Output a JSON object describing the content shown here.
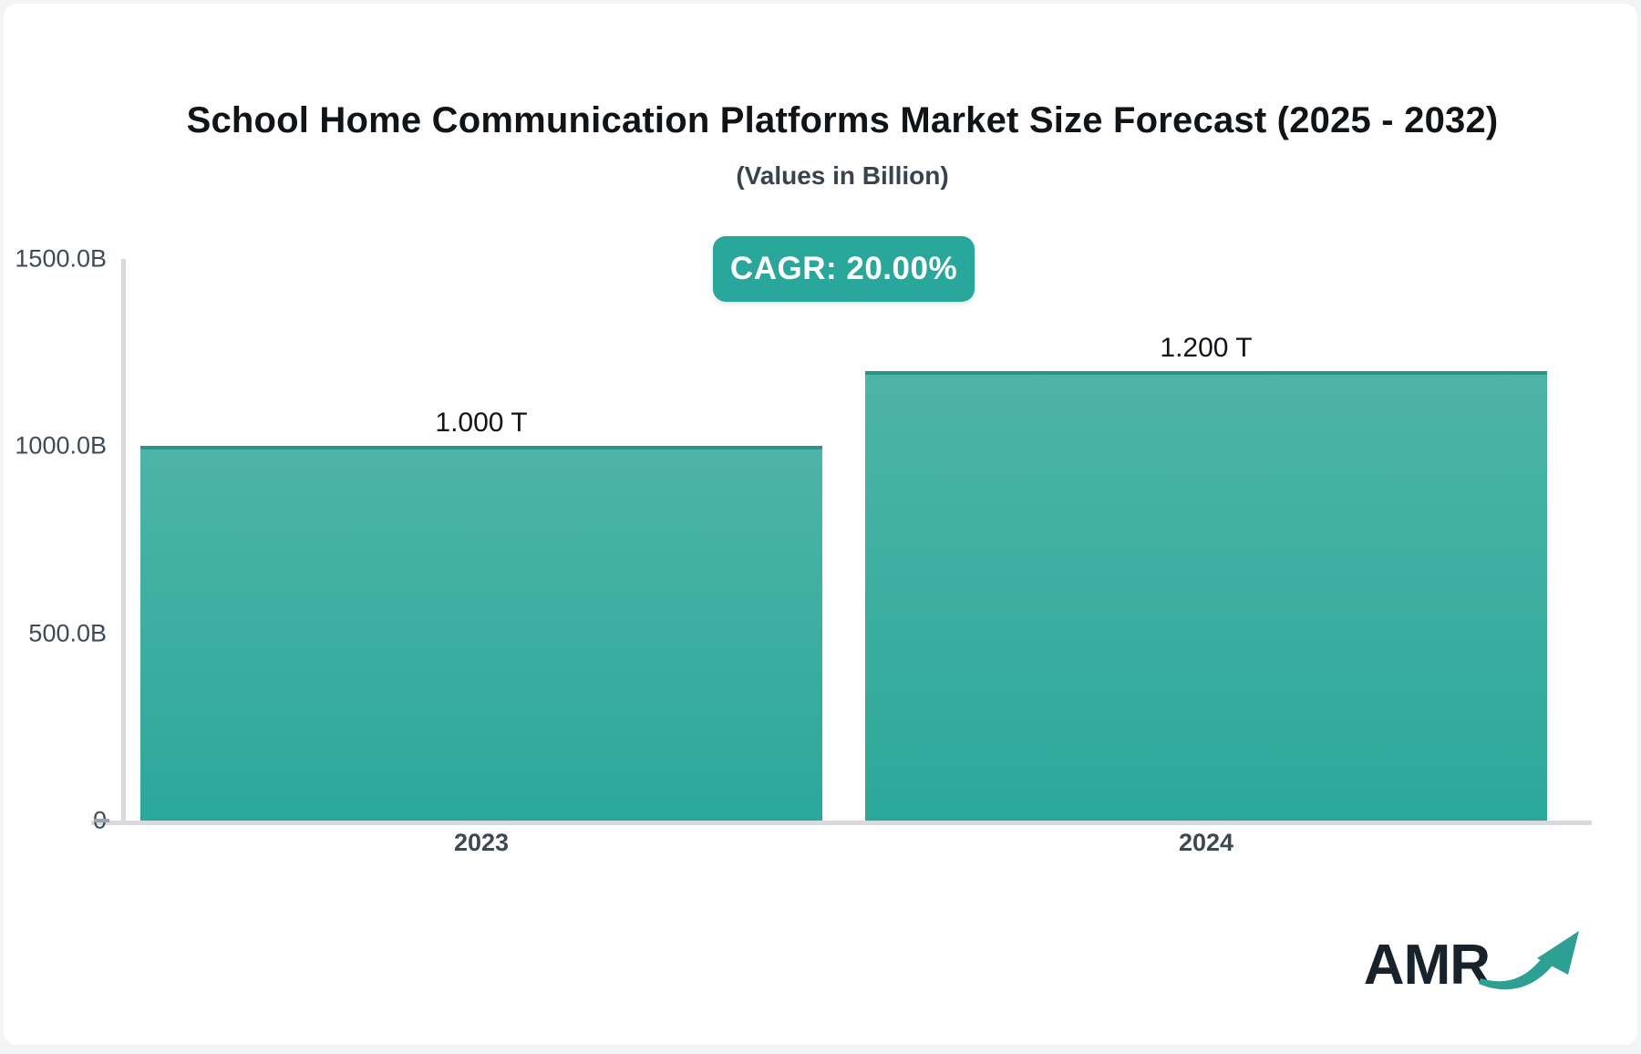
{
  "header": {
    "title": "School Home Communication Platforms Market Size Forecast (2025 - 2032)",
    "subtitle": "(Values in Billion)",
    "badge_label": "CAGR: 20.00%"
  },
  "chart_data": {
    "type": "bar",
    "title": "School Home Communication Platforms Market Size Forecast (2025 - 2032)",
    "subtitle": "(Values in Billion)",
    "annotation": "CAGR: 20.00%",
    "categories": [
      "2023",
      "2024"
    ],
    "values": [
      1000,
      1200
    ],
    "value_labels": [
      "1.000 T",
      "1.200 T"
    ],
    "unit": "Billion",
    "xlabel": "",
    "ylabel": "",
    "ylim": [
      0,
      1500
    ],
    "yticks": [
      {
        "label": "1500.0B",
        "value": 1500,
        "dash": false
      },
      {
        "label": "1000.0B",
        "value": 1000,
        "dash": false
      },
      {
        "label": "500.0B",
        "value": 500,
        "dash": false
      },
      {
        "label": "0",
        "value": 0,
        "dash": true
      }
    ],
    "grid": false,
    "legend_position": "none"
  },
  "colors": {
    "accent": "#2aa79b",
    "badge_bg": "#2aa79b",
    "bar_gradient_top": "#4db4a7",
    "bar_gradient_bottom": "#2ba89a",
    "bar_border_top": "#2a9487",
    "axis_line": "#d8dadd",
    "tick_text": "#3f4a59",
    "title_text": "#111417",
    "subtitle_text": "#39424e",
    "logo_text": "#17222b",
    "logo_arrow": "#2d9f93"
  },
  "logo": {
    "text": "AMR"
  }
}
